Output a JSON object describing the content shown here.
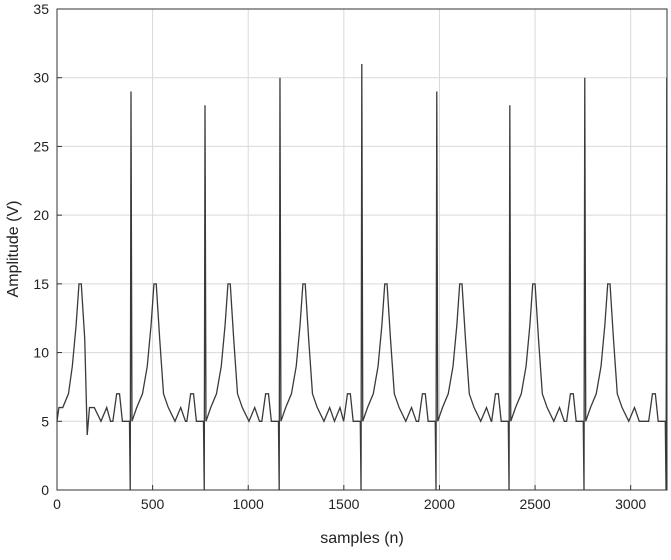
{
  "chart_data": {
    "type": "line",
    "xlabel": "samples (n)",
    "ylabel": "Amplitude (V)",
    "x": [
      0,
      10,
      30,
      60,
      80,
      100,
      115,
      127,
      145,
      158,
      170,
      195,
      230,
      260,
      280,
      292,
      312,
      327,
      342,
      379,
      383,
      387,
      392,
      417,
      447,
      472,
      492,
      507,
      519,
      537,
      557,
      582,
      617,
      647,
      672,
      679,
      699,
      714,
      729,
      766,
      770,
      774,
      779,
      804,
      834,
      859,
      879,
      894,
      906,
      924,
      944,
      969,
      1004,
      1034,
      1059,
      1071,
      1091,
      1106,
      1121,
      1158,
      1162,
      1166,
      1171,
      1196,
      1226,
      1251,
      1271,
      1286,
      1298,
      1316,
      1336,
      1361,
      1396,
      1426,
      1451,
      1480,
      1499,
      1519,
      1534,
      1549,
      1586,
      1590,
      1594,
      1599,
      1624,
      1654,
      1679,
      1699,
      1714,
      1726,
      1744,
      1764,
      1789,
      1824,
      1854,
      1879,
      1891,
      1911,
      1926,
      1941,
      1978,
      1982,
      1986,
      1991,
      2016,
      2046,
      2071,
      2091,
      2106,
      2118,
      2136,
      2156,
      2181,
      2216,
      2246,
      2271,
      2273,
      2293,
      2308,
      2323,
      2360,
      2364,
      2368,
      2373,
      2398,
      2428,
      2453,
      2473,
      2488,
      2500,
      2518,
      2538,
      2563,
      2598,
      2628,
      2653,
      2665,
      2685,
      2700,
      2715,
      2752,
      2756,
      2760,
      2765,
      2790,
      2820,
      2845,
      2865,
      2880,
      2892,
      2910,
      2930,
      2955,
      2990,
      3020,
      3045,
      3094,
      3114,
      3129,
      3144,
      3181,
      3185,
      3189
    ],
    "series": [
      {
        "color": "#3a3a3a",
        "values": [
          5,
          6,
          6,
          7,
          9,
          12,
          15,
          15,
          11,
          4,
          6,
          6,
          5,
          6,
          5,
          5,
          7,
          7,
          5,
          5,
          0,
          29,
          5,
          6,
          7,
          9,
          12,
          15,
          15,
          11,
          7,
          6,
          5,
          6,
          5,
          5,
          7,
          7,
          5,
          5,
          0,
          28,
          5,
          6,
          7,
          9,
          12,
          15,
          15,
          11,
          7,
          6,
          5,
          6,
          5,
          5,
          7,
          7,
          5,
          5,
          0,
          30,
          5,
          6,
          7,
          9,
          12,
          15,
          15,
          11,
          7,
          6,
          5,
          6,
          5,
          6,
          5,
          7,
          7,
          5,
          5,
          0,
          31,
          5,
          6,
          7,
          9,
          12,
          15,
          15,
          11,
          7,
          6,
          5,
          6,
          5,
          5,
          7,
          7,
          5,
          5,
          0,
          29,
          5,
          6,
          7,
          9,
          12,
          15,
          15,
          11,
          7,
          6,
          5,
          6,
          5,
          5,
          7,
          7,
          5,
          5,
          0,
          28,
          5,
          6,
          7,
          9,
          12,
          15,
          15,
          11,
          7,
          6,
          5,
          6,
          5,
          5,
          7,
          7,
          5,
          5,
          0,
          30,
          5,
          6,
          7,
          9,
          12,
          15,
          15,
          11,
          7,
          6,
          5,
          6,
          5,
          5,
          7,
          7,
          5,
          5,
          0,
          30
        ]
      }
    ],
    "xlim": [
      0,
      3190
    ],
    "xticks": [
      0,
      500,
      1000,
      1500,
      2000,
      2500,
      3000
    ],
    "ylim": [
      0,
      35
    ],
    "yticks": [
      0,
      5,
      10,
      15,
      20,
      25,
      30,
      35
    ],
    "grid": true
  }
}
